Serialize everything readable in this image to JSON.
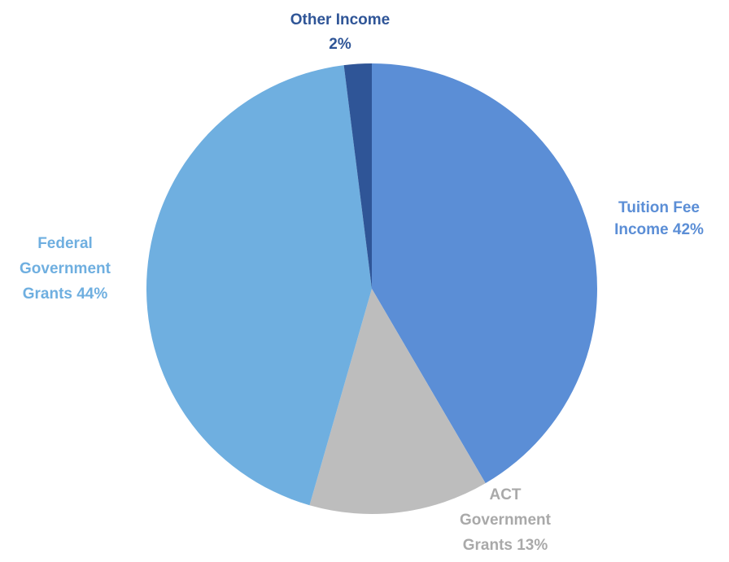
{
  "chart_data": {
    "type": "pie",
    "title": "",
    "start_angle_deg": 0,
    "direction": "clockwise",
    "legend": "none",
    "slices": [
      {
        "name": "Tuition Fee Income",
        "value": 42,
        "color": "#5B8ED6",
        "label_color": "#5B8ED6",
        "label_lines": [
          "Tuition Fee",
          "Income 42%"
        ]
      },
      {
        "name": "ACT Government Grants",
        "value": 13,
        "color": "#BDBDBD",
        "label_color": "#A9A9A9",
        "label_lines": [
          "ACT",
          "Government",
          "Grants 13%"
        ]
      },
      {
        "name": "Federal Government Grants",
        "value": 44,
        "color": "#6FAFE0",
        "label_color": "#6FAFE0",
        "label_lines": [
          "Federal",
          "Government",
          "Grants 44%"
        ]
      },
      {
        "name": "Other Income",
        "value": 2,
        "color": "#2F5597",
        "label_color": "#2F5597",
        "label_lines": [
          "Other Income",
          "2%"
        ]
      }
    ]
  }
}
